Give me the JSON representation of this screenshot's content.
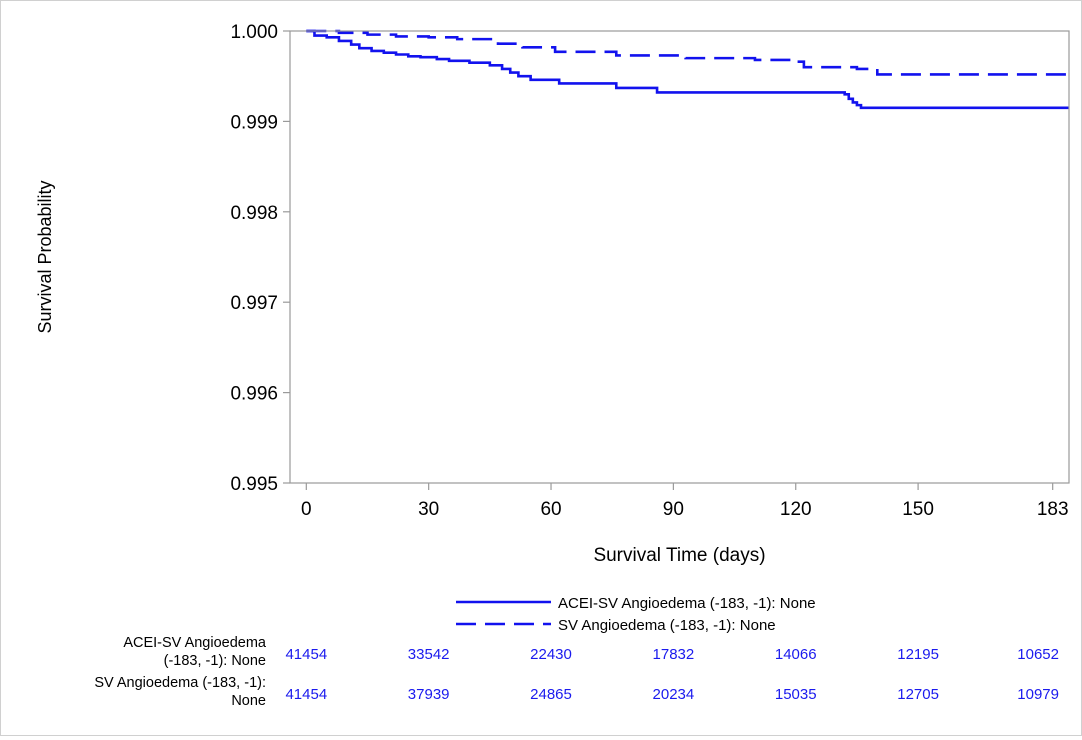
{
  "chart_data": {
    "type": "line",
    "title": "",
    "xlabel": "Survival Time (days)",
    "ylabel": "Survival Probability",
    "xlim": [
      -4,
      187
    ],
    "ylim": [
      0.995,
      1.0
    ],
    "x_ticks": [
      0,
      30,
      60,
      90,
      120,
      150,
      183
    ],
    "x_tick_labels": [
      "0",
      "30",
      "60",
      "90",
      "120",
      "150",
      "183"
    ],
    "y_ticks": [
      0.995,
      0.996,
      0.997,
      0.998,
      0.999,
      1.0
    ],
    "y_tick_labels": [
      "0.995",
      "0.996",
      "0.997",
      "0.998",
      "0.999",
      "1.000"
    ],
    "grid": false,
    "legend_position": "bottom",
    "series": [
      {
        "name": "ACEI-SV Angioedema (-183, -1): None",
        "style": "solid",
        "color": "#1212ee",
        "points": [
          [
            0,
            1.0
          ],
          [
            2,
            0.99995
          ],
          [
            5,
            0.99993
          ],
          [
            8,
            0.99989
          ],
          [
            11,
            0.99985
          ],
          [
            13,
            0.99981
          ],
          [
            16,
            0.99978
          ],
          [
            19,
            0.99976
          ],
          [
            22,
            0.99974
          ],
          [
            25,
            0.99972
          ],
          [
            28,
            0.99971
          ],
          [
            32,
            0.99969
          ],
          [
            35,
            0.99967
          ],
          [
            40,
            0.99965
          ],
          [
            45,
            0.99962
          ],
          [
            48,
            0.99958
          ],
          [
            50,
            0.99954
          ],
          [
            52,
            0.9995
          ],
          [
            55,
            0.99946
          ],
          [
            62,
            0.99942
          ],
          [
            76,
            0.99937
          ],
          [
            86,
            0.99932
          ],
          [
            132,
            0.9993
          ],
          [
            133,
            0.99925
          ],
          [
            134,
            0.99921
          ],
          [
            135,
            0.99918
          ],
          [
            136,
            0.99915
          ],
          [
            187,
            0.99915
          ]
        ]
      },
      {
        "name": "SV Angioedema (-183, -1): None",
        "style": "dashed",
        "color": "#1212ee",
        "points": [
          [
            0,
            1.0
          ],
          [
            8,
            0.99998
          ],
          [
            15,
            0.99996
          ],
          [
            22,
            0.99994
          ],
          [
            30,
            0.99993
          ],
          [
            37,
            0.99991
          ],
          [
            47,
            0.99986
          ],
          [
            53,
            0.99982
          ],
          [
            61,
            0.99977
          ],
          [
            76,
            0.99973
          ],
          [
            93,
            0.9997
          ],
          [
            110,
            0.99968
          ],
          [
            120,
            0.99966
          ],
          [
            122,
            0.9996
          ],
          [
            135,
            0.99958
          ],
          [
            140,
            0.99952
          ],
          [
            187,
            0.99951
          ]
        ]
      }
    ],
    "at_risk": {
      "rows": [
        {
          "label": "ACEI-SV Angioedema (-183, -1): None",
          "label_lines": [
            "ACEI-SV Angioedema",
            "(-183, -1): None"
          ],
          "values": [
            "41454",
            "33542",
            "22430",
            "17832",
            "14066",
            "12195",
            "10652"
          ]
        },
        {
          "label": "SV Angioedema (-183, -1): None",
          "label_lines": [
            "SV Angioedema (-183, -1):",
            "None"
          ],
          "values": [
            "41454",
            "37939",
            "24865",
            "20234",
            "15035",
            "12705",
            "10979"
          ]
        }
      ],
      "color": "#1a1aee"
    }
  }
}
